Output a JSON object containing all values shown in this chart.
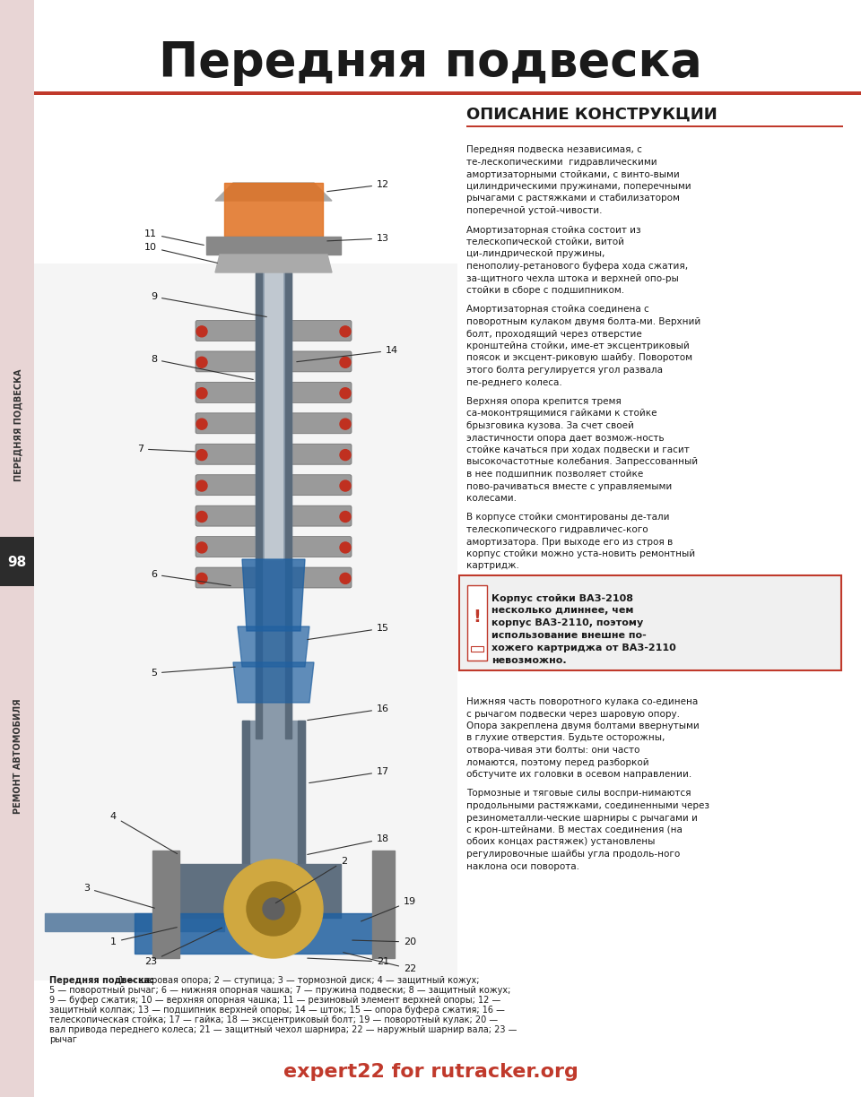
{
  "title": "Передняя подвеска",
  "bg_color": "#ffffff",
  "left_strip_color": "#e8d5d5",
  "red_bar_color": "#c0392b",
  "page_number": "98",
  "left_text_top": "ПЕРЕДНЯЯ ПОДВЕСКА",
  "left_text_bottom": "РЕМОНТ АВТОМОБИЛЯ",
  "section_header": "ОПИСАНИЕ КОНСТРУКЦИИ",
  "description_text": "Передняя подвеска независимая, с те-лескопическими  гидравлическими амортизаторными стойками, с винто-выми цилиндрическими пружинами, поперечными рычагами с растяжками и стабилизатором поперечной устой-чивости.\nАмортизаторная стойка состоит из телескопической стойки, витой ци-линдрической пружины, пенополиу-ретанового буфера хода сжатия, за-щитного чехла штока и верхней опо-ры стойки в сборе с подшипником.\nАмортизаторная стойка соединена с поворотным кулаком двумя болта-ми. Верхний болт, проходящий через отверстие кронштейна стойки, име-ет эксцентриковый поясок и эксцент-риковую шайбу. Поворотом этого болта регулируется угол развала пе-реднего колеса.\nВерхняя опора крепится тремя са-моконтрящимися гайками к стойке брызговика кузова. За счет своей эластичности опора дает возмож-ность стойке качаться при ходах подвески и гасит высокочастотные колебания. Запрессованный в нее подшипник позволяет стойке пово-рачиваться вместе с управляемыми колесами.\nВ корпусе стойки смонтированы де-тали телескопического гидравличес-кого амортизатора. При выходе его из строя в корпус стойки можно уста-новить ремонтный картридж.",
  "warning_text": "Корпус стойки ВАЗ-2108\nнесколько длиннее, чем\nкорпус ВАЗ-2110, поэтому\nиспользование внешне по-\nхожего картриджа от ВАЗ-2110\nневозможно.",
  "bottom_text": "Нижняя часть поворотного кулака со-единена с рычагом подвески через шаровую опору. Опора закреплена двумя болтами ввернутыми в глухие отверстия. Будьте осторожны, отвора-чивая эти болты: они часто ломаются, поэтому перед разборкой обстучите их головки в осевом направлении.\nТормозные и тяговые силы воспри-нимаются продольными растяжками, соединенными через резинометалли-ческие шарниры с рычагами и с крон-штейнами. В местах соединения (на обоих концах растяжек) установлены регулировочные шайбы угла продоль-ного наклона оси поворота.",
  "caption_text": "Передняя подвеска: 1 — шаровая опора; 2 — ступица; 3 — тормозной диск; 4 — защитный кожух; 5 — поворотный рычаг; 6 — нижняя опорная чашка; 7 — пружина подвески; 8 — защитный кожух; 9 — буфер сжатия; 10 — верхняя опорная чашка; 11 — резиновый элемент верхней опоры; 12 — защитный колпак; 13 — подшипник верхней опоры; 14 — шток; 15 — опора буфера сжатия; 16 — телескопическая стойка; 17 — гайка; 18 — эксцентриковый болт; 19 — поворотный кулак; 20 — вал привода переднего колеса; 21 — защитный чехол шарнира; 22 — наружный шарнир вала; 23 — рычаг",
  "footer_text": "expert22 for rutracker.org",
  "footer_color": "#c0392b",
  "header_line_color": "#c0392b"
}
